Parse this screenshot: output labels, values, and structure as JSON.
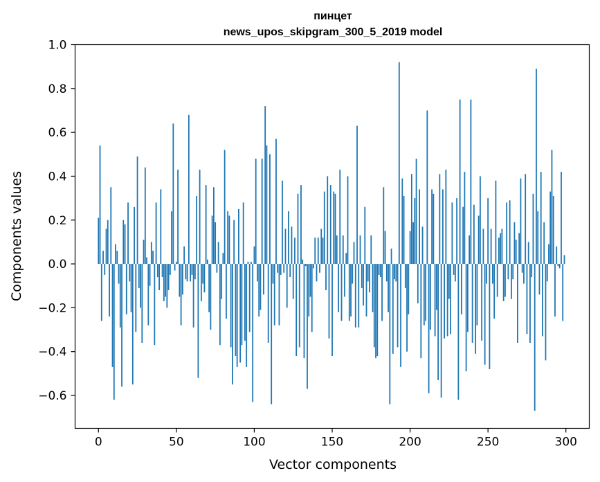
{
  "chart_data": {
    "type": "bar",
    "title": "пинцет",
    "subtitle": "news_upos_skipgram_300_5_2019 model",
    "xlabel": "Vector components",
    "ylabel": "Components values",
    "xlim": [
      -15,
      315
    ],
    "ylim": [
      -0.75,
      1.0
    ],
    "xticks": [
      0,
      50,
      100,
      150,
      200,
      250,
      300
    ],
    "yticks": [
      -0.6,
      -0.4,
      -0.2,
      0.0,
      0.2,
      0.4,
      0.6,
      0.8,
      1.0
    ],
    "ytick_labels": [
      "−0.6",
      "−0.4",
      "−0.2",
      "0.0",
      "0.2",
      "0.4",
      "0.6",
      "0.8",
      "1.0"
    ],
    "grid": false,
    "bar_color": "#1f77b4",
    "x": [
      0,
      1,
      2,
      3,
      4,
      5,
      6,
      7,
      8,
      9,
      10,
      11,
      12,
      13,
      14,
      15,
      16,
      17,
      18,
      19,
      20,
      21,
      22,
      23,
      24,
      25,
      26,
      27,
      28,
      29,
      30,
      31,
      32,
      33,
      34,
      35,
      36,
      37,
      38,
      39,
      40,
      41,
      42,
      43,
      44,
      45,
      46,
      47,
      48,
      49,
      50,
      51,
      52,
      53,
      54,
      55,
      56,
      57,
      58,
      59,
      60,
      61,
      62,
      63,
      64,
      65,
      66,
      67,
      68,
      69,
      70,
      71,
      72,
      73,
      74,
      75,
      76,
      77,
      78,
      79,
      80,
      81,
      82,
      83,
      84,
      85,
      86,
      87,
      88,
      89,
      90,
      91,
      92,
      93,
      94,
      95,
      96,
      97,
      98,
      99,
      100,
      101,
      102,
      103,
      104,
      105,
      106,
      107,
      108,
      109,
      110,
      111,
      112,
      113,
      114,
      115,
      116,
      117,
      118,
      119,
      120,
      121,
      122,
      123,
      124,
      125,
      126,
      127,
      128,
      129,
      130,
      131,
      132,
      133,
      134,
      135,
      136,
      137,
      138,
      139,
      140,
      141,
      142,
      143,
      144,
      145,
      146,
      147,
      148,
      149,
      150,
      151,
      152,
      153,
      154,
      155,
      156,
      157,
      158,
      159,
      160,
      161,
      162,
      163,
      164,
      165,
      166,
      167,
      168,
      169,
      170,
      171,
      172,
      173,
      174,
      175,
      176,
      177,
      178,
      179,
      180,
      181,
      182,
      183,
      184,
      185,
      186,
      187,
      188,
      189,
      190,
      191,
      192,
      193,
      194,
      195,
      196,
      197,
      198,
      199,
      200,
      201,
      202,
      203,
      204,
      205,
      206,
      207,
      208,
      209,
      210,
      211,
      212,
      213,
      214,
      215,
      216,
      217,
      218,
      219,
      220,
      221,
      222,
      223,
      224,
      225,
      226,
      227,
      228,
      229,
      230,
      231,
      232,
      233,
      234,
      235,
      236,
      237,
      238,
      239,
      240,
      241,
      242,
      243,
      244,
      245,
      246,
      247,
      248,
      249,
      250,
      251,
      252,
      253,
      254,
      255,
      256,
      257,
      258,
      259,
      260,
      261,
      262,
      263,
      264,
      265,
      266,
      267,
      268,
      269,
      270,
      271,
      272,
      273,
      274,
      275,
      276,
      277,
      278,
      279,
      280,
      281,
      282,
      283,
      284,
      285,
      286,
      287,
      288,
      289,
      290,
      291,
      292,
      293,
      294,
      295,
      296,
      297,
      298,
      299
    ],
    "values": [
      0.21,
      0.54,
      -0.26,
      0.06,
      -0.05,
      0.16,
      0.2,
      -0.24,
      0.35,
      -0.47,
      -0.62,
      0.09,
      0.06,
      -0.09,
      -0.29,
      -0.56,
      0.2,
      0.18,
      -0.23,
      0.28,
      -0.08,
      -0.22,
      -0.55,
      0.26,
      -0.31,
      0.49,
      -0.11,
      -0.2,
      -0.36,
      0.11,
      0.44,
      0.03,
      -0.28,
      -0.1,
      0.1,
      0.06,
      -0.37,
      0.28,
      -0.06,
      -0.12,
      0.34,
      -0.06,
      -0.17,
      -0.15,
      -0.2,
      -0.12,
      -0.05,
      0.24,
      0.64,
      -0.03,
      0.01,
      0.43,
      -0.15,
      -0.28,
      -0.14,
      0.08,
      -0.07,
      -0.08,
      0.68,
      -0.08,
      -0.05,
      -0.29,
      -0.07,
      0.31,
      -0.52,
      0.43,
      -0.17,
      -0.09,
      -0.13,
      0.36,
      0.02,
      -0.22,
      -0.3,
      0.22,
      0.35,
      0.19,
      -0.04,
      0.1,
      -0.37,
      -0.16,
      0.05,
      0.52,
      -0.25,
      0.24,
      0.22,
      -0.38,
      -0.55,
      0.2,
      -0.42,
      -0.47,
      0.25,
      -0.45,
      -0.37,
      0.28,
      -0.35,
      -0.47,
      0.01,
      -0.31,
      0.01,
      -0.63,
      0.08,
      0.48,
      -0.08,
      -0.24,
      -0.21,
      0.48,
      -0.14,
      0.72,
      0.54,
      -0.36,
      0.5,
      -0.64,
      -0.09,
      -0.28,
      0.57,
      -0.04,
      -0.28,
      -0.05,
      0.38,
      -0.04,
      0.16,
      -0.2,
      0.24,
      -0.06,
      0.17,
      -0.16,
      0.12,
      -0.42,
      0.32,
      -0.38,
      0.36,
      0.02,
      -0.43,
      -0.01,
      -0.57,
      -0.24,
      -0.15,
      -0.31,
      -0.02,
      0.12,
      -0.08,
      0.12,
      -0.04,
      0.16,
      0.12,
      0.33,
      -0.12,
      0.4,
      -0.34,
      0.36,
      -0.42,
      0.33,
      0.32,
      0.13,
      -0.22,
      0.43,
      -0.26,
      0.13,
      -0.15,
      0.05,
      0.4,
      -0.26,
      -0.24,
      -0.09,
      0.1,
      -0.29,
      0.63,
      -0.29,
      0.13,
      -0.11,
      -0.19,
      0.26,
      -0.24,
      -0.08,
      -0.13,
      0.13,
      -0.22,
      -0.38,
      -0.43,
      -0.42,
      -0.05,
      -0.06,
      -0.26,
      0.35,
      0.15,
      -0.08,
      -0.22,
      -0.64,
      0.07,
      -0.41,
      -0.07,
      -0.08,
      -0.38,
      0.92,
      -0.47,
      0.39,
      0.31,
      -0.11,
      -0.4,
      -0.23,
      0.15,
      0.41,
      0.19,
      0.3,
      0.48,
      -0.18,
      0.34,
      -0.43,
      0.17,
      -0.28,
      -0.26,
      0.7,
      -0.59,
      -0.3,
      0.34,
      0.32,
      -0.33,
      -0.21,
      -0.53,
      0.41,
      -0.61,
      0.34,
      -0.34,
      0.43,
      -0.33,
      -0.16,
      -0.32,
      0.28,
      -0.05,
      -0.08,
      0.3,
      -0.62,
      0.75,
      -0.23,
      0.26,
      0.42,
      -0.49,
      -0.31,
      0.13,
      0.75,
      -0.36,
      0.27,
      -0.41,
      -0.28,
      0.22,
      0.4,
      -0.35,
      0.16,
      -0.46,
      -0.09,
      0.3,
      -0.48,
      0.16,
      -0.09,
      -0.25,
      0.38,
      -0.15,
      0.12,
      0.14,
      0.16,
      -0.17,
      -0.15,
      0.28,
      -0.07,
      0.29,
      -0.16,
      -0.07,
      0.19,
      0.11,
      -0.36,
      0.14,
      0.39,
      -0.04,
      -0.09,
      0.41,
      -0.32,
      0.1,
      -0.36,
      -0.06,
      0.32,
      -0.67,
      0.89,
      0.24,
      -0.14,
      0.42,
      -0.33,
      0.19,
      -0.44,
      -0.08,
      0.09,
      0.33,
      0.52,
      0.31,
      -0.24,
      0.08,
      -0.01,
      -0.02,
      0.42,
      -0.26,
      0.04
    ]
  }
}
